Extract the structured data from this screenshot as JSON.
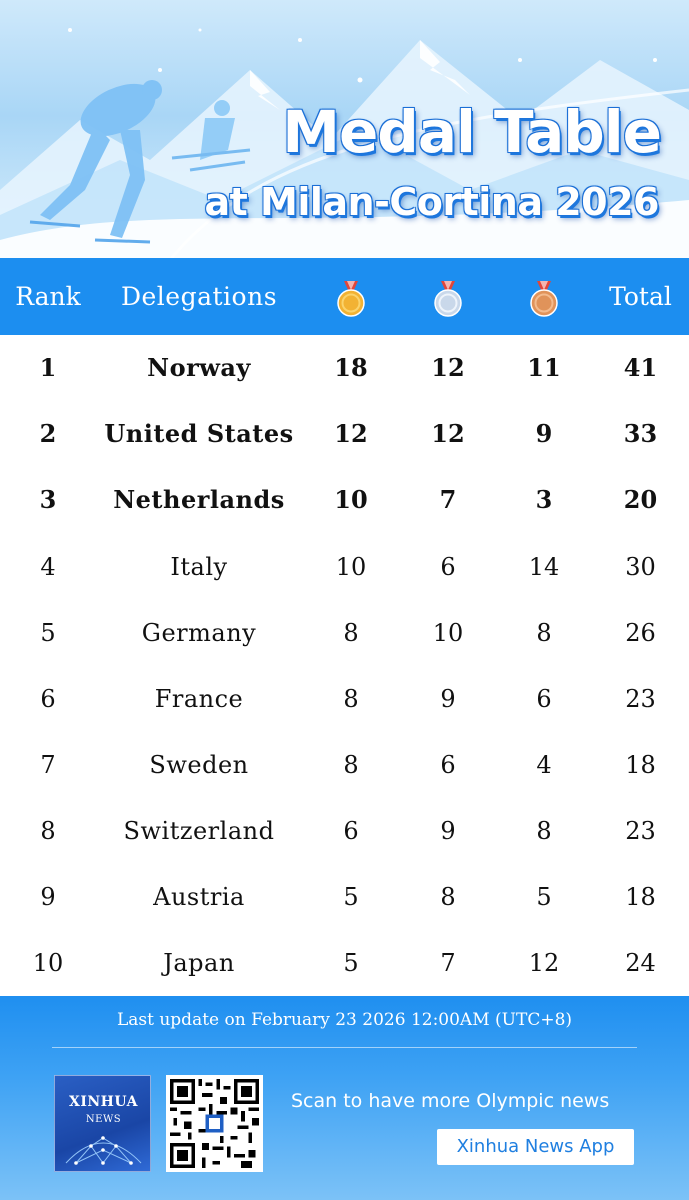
{
  "banner": {
    "title": "Medal Table",
    "subtitle": "at Milan-Cortina 2026"
  },
  "header": {
    "rank": "Rank",
    "delegations": "Delegations",
    "gold_icon": "gold-medal-icon",
    "silver_icon": "silver-medal-icon",
    "bronze_icon": "bronze-medal-icon",
    "total": "Total"
  },
  "rows": [
    {
      "rank": "1",
      "name": "Norway",
      "gold": "18",
      "silver": "12",
      "bronze": "11",
      "total": "41"
    },
    {
      "rank": "2",
      "name": "United States",
      "gold": "12",
      "silver": "12",
      "bronze": "9",
      "total": "33"
    },
    {
      "rank": "3",
      "name": "Netherlands",
      "gold": "10",
      "silver": "7",
      "bronze": "3",
      "total": "20"
    },
    {
      "rank": "4",
      "name": "Italy",
      "gold": "10",
      "silver": "6",
      "bronze": "14",
      "total": "30"
    },
    {
      "rank": "5",
      "name": "Germany",
      "gold": "8",
      "silver": "10",
      "bronze": "8",
      "total": "26"
    },
    {
      "rank": "6",
      "name": "France",
      "gold": "8",
      "silver": "9",
      "bronze": "6",
      "total": "23"
    },
    {
      "rank": "7",
      "name": "Sweden",
      "gold": "8",
      "silver": "6",
      "bronze": "4",
      "total": "18"
    },
    {
      "rank": "8",
      "name": "Switzerland",
      "gold": "6",
      "silver": "9",
      "bronze": "8",
      "total": "23"
    },
    {
      "rank": "9",
      "name": "Austria",
      "gold": "5",
      "silver": "8",
      "bronze": "5",
      "total": "18"
    },
    {
      "rank": "10",
      "name": "Japan",
      "gold": "5",
      "silver": "7",
      "bronze": "12",
      "total": "24"
    }
  ],
  "footer": {
    "last_update": "Last update on February 23 2026 12:00AM (UTC+8)",
    "logo_top": "XINHUA",
    "logo_bottom": "NEWS",
    "scan_text": "Scan to have more Olympic news",
    "app_button": "Xinhua News App"
  },
  "colors": {
    "header_bg": "#1c8ef0",
    "title_outline": "#1b6fd6",
    "gold": "#f2b233",
    "silver": "#c9d8ea",
    "bronze": "#e0935a"
  }
}
